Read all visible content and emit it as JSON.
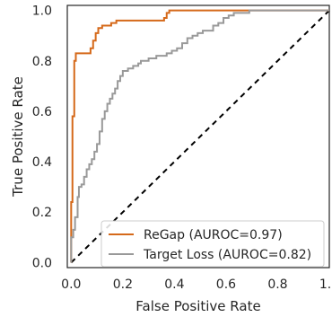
{
  "chart_data": {
    "type": "line",
    "title": "",
    "xlabel": "False Positive Rate",
    "ylabel": "True Positive Rate",
    "xlim": [
      -0.015,
      1.0
    ],
    "ylim": [
      -0.02,
      1.02
    ],
    "xticks": [
      0.0,
      0.2,
      0.4,
      0.6,
      0.8,
      1.0
    ],
    "yticks": [
      0.0,
      0.2,
      0.4,
      0.6,
      0.8,
      1.0
    ],
    "xtick_labels": [
      "0.0",
      "0.2",
      "0.4",
      "0.6",
      "0.8",
      "1.0"
    ],
    "ytick_labels": [
      "0.0",
      "0.2",
      "0.4",
      "0.6",
      "0.8",
      "1.0"
    ],
    "grid": false,
    "legend_position": "bottom-right",
    "diagonal": {
      "x": [
        0,
        1
      ],
      "y": [
        0,
        1
      ],
      "style": "dashed",
      "color": "#000000"
    },
    "series": [
      {
        "name": "ReGap (AUROC=0.97)",
        "color": "#d5691a",
        "x": [
          0.0,
          0.0,
          0.005,
          0.005,
          0.012,
          0.012,
          0.018,
          0.018,
          0.075,
          0.075,
          0.085,
          0.085,
          0.095,
          0.095,
          0.105,
          0.105,
          0.12,
          0.12,
          0.155,
          0.155,
          0.175,
          0.175,
          0.36,
          0.36,
          0.37,
          0.37,
          0.38,
          0.38,
          1.0
        ],
        "y": [
          0.0,
          0.24,
          0.24,
          0.58,
          0.58,
          0.8,
          0.8,
          0.83,
          0.83,
          0.85,
          0.85,
          0.88,
          0.88,
          0.91,
          0.91,
          0.93,
          0.93,
          0.94,
          0.94,
          0.95,
          0.95,
          0.96,
          0.96,
          0.97,
          0.97,
          0.99,
          0.99,
          1.0,
          1.0
        ]
      },
      {
        "name": "Target Loss (AUROC=0.82)",
        "color": "#999999",
        "x": [
          0.0,
          0.0,
          0.008,
          0.008,
          0.015,
          0.015,
          0.025,
          0.025,
          0.03,
          0.03,
          0.04,
          0.04,
          0.05,
          0.05,
          0.06,
          0.06,
          0.07,
          0.07,
          0.08,
          0.08,
          0.09,
          0.09,
          0.1,
          0.1,
          0.11,
          0.11,
          0.12,
          0.12,
          0.13,
          0.13,
          0.14,
          0.14,
          0.15,
          0.15,
          0.16,
          0.16,
          0.17,
          0.17,
          0.18,
          0.18,
          0.19,
          0.19,
          0.2,
          0.2,
          0.22,
          0.22,
          0.24,
          0.24,
          0.26,
          0.26,
          0.27,
          0.27,
          0.28,
          0.28,
          0.3,
          0.3,
          0.33,
          0.33,
          0.37,
          0.37,
          0.39,
          0.39,
          0.41,
          0.41,
          0.43,
          0.43,
          0.45,
          0.45,
          0.47,
          0.47,
          0.49,
          0.49,
          0.51,
          0.51,
          0.55,
          0.55,
          0.57,
          0.57,
          0.59,
          0.59,
          0.61,
          0.61,
          0.63,
          0.63,
          0.67,
          0.67,
          0.69,
          0.69,
          0.72,
          0.72,
          1.0
        ],
        "y": [
          0.0,
          0.1,
          0.1,
          0.13,
          0.13,
          0.18,
          0.18,
          0.26,
          0.26,
          0.3,
          0.3,
          0.31,
          0.31,
          0.34,
          0.34,
          0.37,
          0.37,
          0.39,
          0.39,
          0.41,
          0.41,
          0.44,
          0.44,
          0.47,
          0.47,
          0.52,
          0.52,
          0.57,
          0.57,
          0.6,
          0.6,
          0.63,
          0.63,
          0.65,
          0.65,
          0.67,
          0.67,
          0.69,
          0.69,
          0.72,
          0.72,
          0.74,
          0.74,
          0.76,
          0.76,
          0.77,
          0.77,
          0.78,
          0.78,
          0.79,
          0.79,
          0.8,
          0.8,
          0.8,
          0.8,
          0.81,
          0.81,
          0.82,
          0.82,
          0.83,
          0.83,
          0.84,
          0.84,
          0.85,
          0.85,
          0.87,
          0.87,
          0.89,
          0.89,
          0.9,
          0.9,
          0.91,
          0.91,
          0.92,
          0.92,
          0.94,
          0.94,
          0.95,
          0.95,
          0.97,
          0.97,
          0.98,
          0.98,
          0.99,
          0.99,
          0.99,
          0.99,
          1.0,
          1.0,
          1.0,
          1.0
        ]
      }
    ]
  }
}
